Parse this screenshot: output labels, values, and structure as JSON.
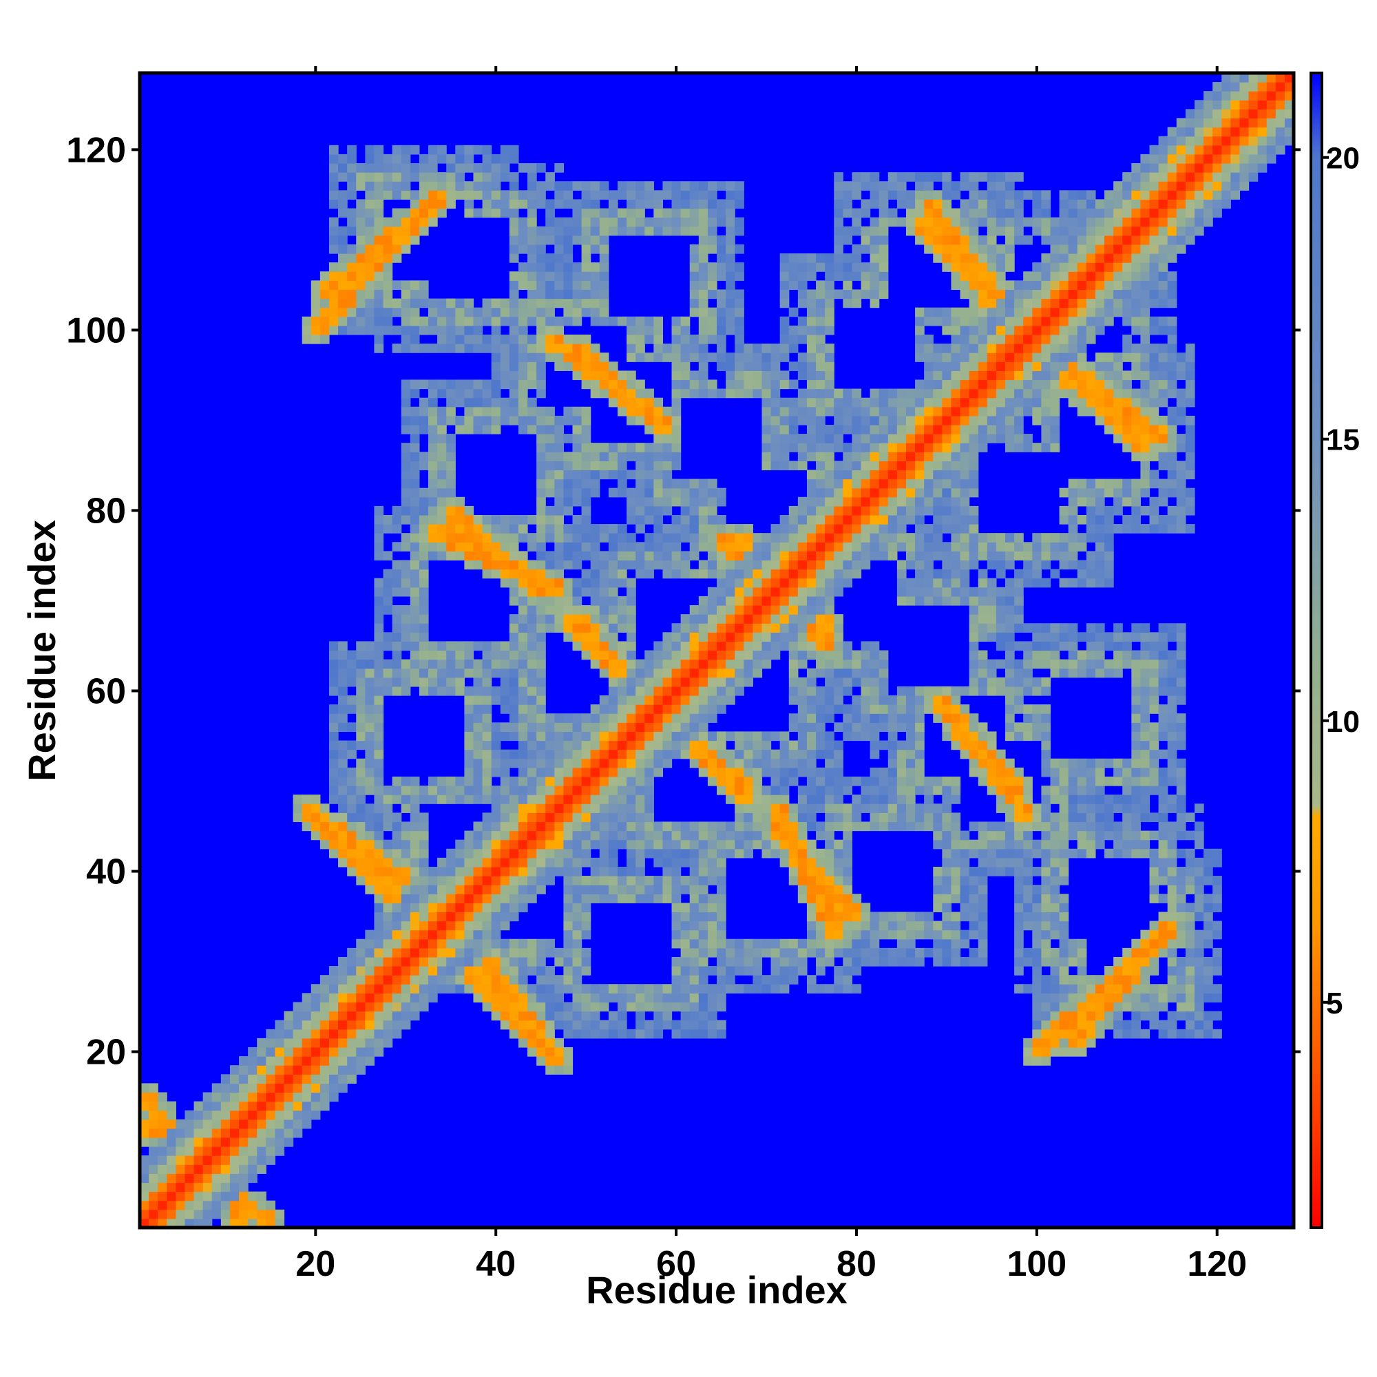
{
  "chart_data": {
    "type": "heatmap",
    "title": "",
    "xlabel": "Residue index",
    "ylabel": "Residue index",
    "xlim": [
      1,
      128
    ],
    "ylim": [
      1,
      128
    ],
    "n_residues": 128,
    "x_ticks": [
      20,
      40,
      60,
      80,
      100,
      120
    ],
    "y_ticks": [
      20,
      40,
      60,
      80,
      100,
      120
    ],
    "x_tick_labels": [
      "20",
      "40",
      "60",
      "80",
      "100",
      "120"
    ],
    "y_tick_labels": [
      "20",
      "40",
      "60",
      "80",
      "100",
      "120"
    ],
    "matrix_symmetric": true,
    "colorbar": {
      "range": [
        1,
        21.5
      ],
      "ticks": [
        5,
        10,
        15,
        20
      ],
      "tick_labels": [
        "5",
        "10",
        "15",
        "20"
      ],
      "colors": [
        "#ff0000",
        "#ff4000",
        "#ff9a00",
        "#ffaa00",
        "#a8b88c",
        "#94b090",
        "#6f8fc0",
        "#4f78cc",
        "#0000ff"
      ],
      "stops": [
        1,
        3,
        6.5,
        8.3,
        8.5,
        11,
        15,
        20,
        21.5
      ]
    },
    "features": {
      "main_diagonal": {
        "from": 1,
        "to": 128,
        "distance": 3.8
      },
      "background_distance": 21.5,
      "loop_centers": [
        [
          37,
          108
        ],
        [
          37,
          70
        ],
        [
          37,
          43
        ],
        [
          50,
          96
        ],
        [
          65,
          88
        ],
        [
          68,
          60
        ],
        [
          82,
          98
        ],
        [
          80,
          70
        ],
        [
          102,
          105
        ],
        [
          107,
          88
        ],
        [
          106,
          57
        ],
        [
          110,
          32
        ],
        [
          55,
          32
        ],
        [
          62,
          50
        ],
        [
          84,
          40
        ],
        [
          92,
          55
        ]
      ],
      "off_diagonal_contacts": [
        {
          "from": [
            21,
            104
          ],
          "to": [
            34,
            115
          ]
        },
        {
          "from": [
            46,
            99
          ],
          "to": [
            59,
            89
          ]
        },
        {
          "from": [
            33,
            78
          ],
          "to": [
            47,
            71
          ]
        },
        {
          "from": [
            49,
            68
          ],
          "to": [
            57,
            59
          ]
        },
        {
          "from": [
            67,
            77
          ],
          "to": [
            77,
            65
          ]
        },
        {
          "from": [
            22,
            45
          ],
          "to": [
            30,
            39
          ]
        },
        {
          "from": [
            36,
            30
          ],
          "to": [
            47,
            19
          ]
        },
        {
          "from": [
            60,
            56
          ],
          "to": [
            68,
            48
          ]
        },
        {
          "from": [
            71,
            45
          ],
          "to": [
            80,
            35
          ]
        },
        {
          "from": [
            88,
            114
          ],
          "to": [
            97,
            102
          ]
        },
        {
          "from": [
            101,
            97
          ],
          "to": [
            112,
            87
          ]
        },
        {
          "from": [
            90,
            58
          ],
          "to": [
            98,
            49
          ]
        },
        {
          "from": [
            100,
            20
          ],
          "to": [
            115,
            34
          ]
        },
        {
          "from": [
            1,
            15
          ],
          "to": [
            12,
            1
          ]
        }
      ]
    }
  }
}
